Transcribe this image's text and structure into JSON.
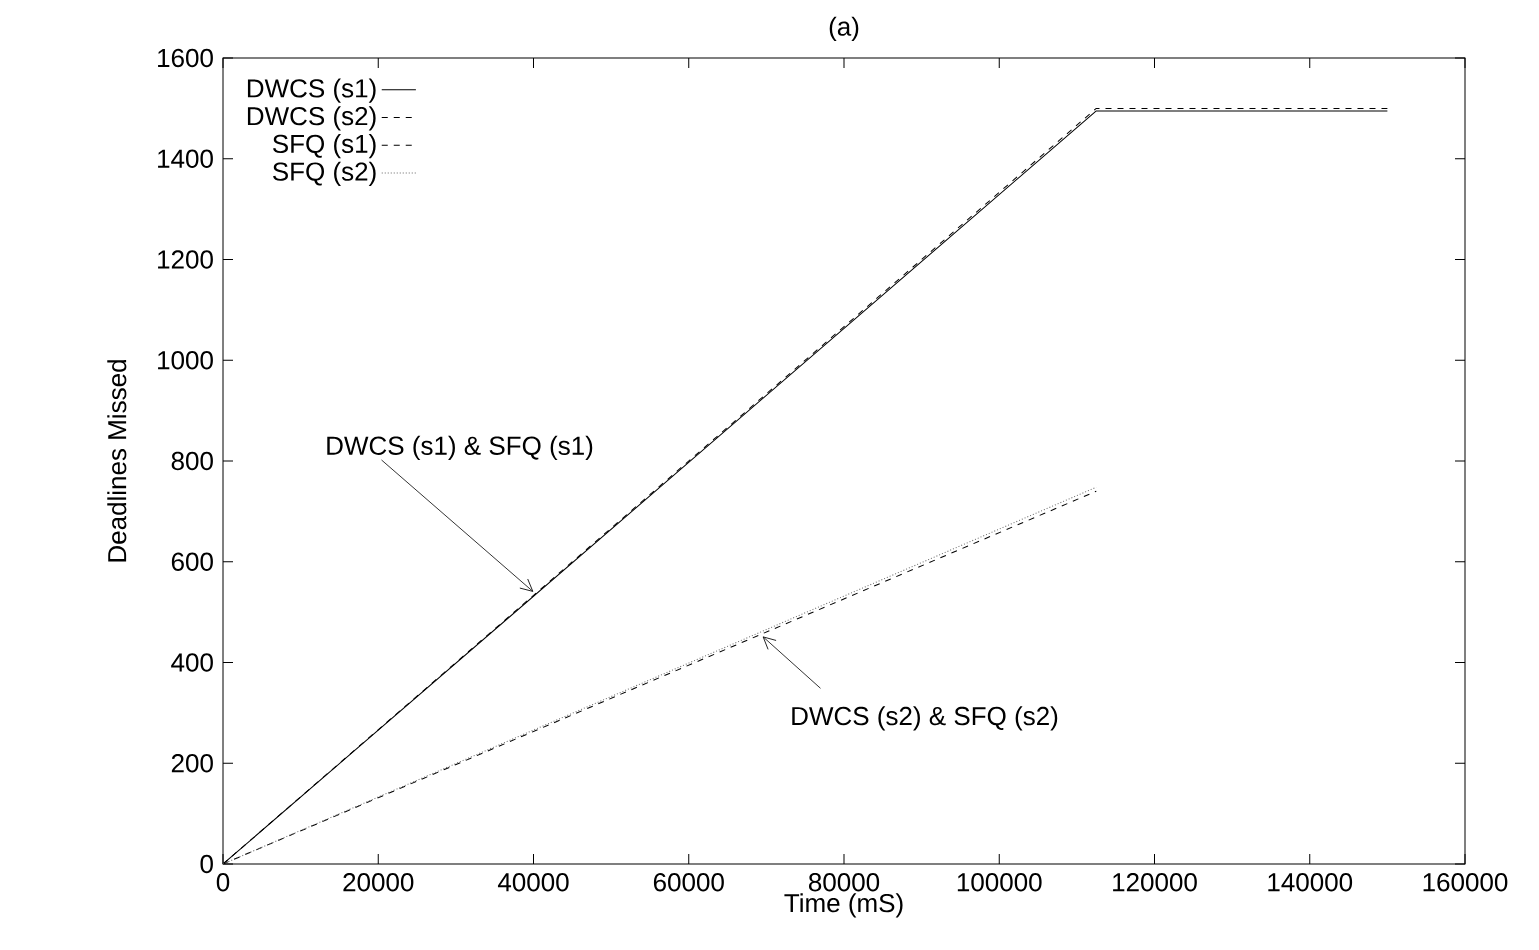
{
  "chart_data": {
    "type": "line",
    "title": "(a)",
    "xlabel": "Time (mS)",
    "ylabel": "Deadlines Missed",
    "series": [
      {
        "name": "DWCS (s1)",
        "color": "#000000",
        "line_style": "solid",
        "x": [
          0,
          112500,
          150000
        ],
        "values": [
          0,
          1495,
          1495
        ]
      },
      {
        "name": "DWCS (s2)",
        "color": "#000000",
        "line_style": "dashed",
        "x": [
          0,
          112500
        ],
        "values": [
          0,
          740
        ]
      },
      {
        "name": "SFQ (s1)",
        "color": "#000000",
        "line_style": "dashed",
        "x": [
          0,
          112500,
          150000
        ],
        "values": [
          0,
          1500,
          1500
        ]
      },
      {
        "name": "SFQ (s2)",
        "color": "#666666",
        "line_style": "dotted",
        "x": [
          0,
          112500
        ],
        "values": [
          0,
          748
        ]
      }
    ],
    "xlim": [
      0,
      160000
    ],
    "ylim": [
      0,
      1600
    ],
    "xticks": [
      0,
      20000,
      40000,
      60000,
      80000,
      100000,
      120000,
      140000,
      160000
    ],
    "yticks": [
      0,
      200,
      400,
      600,
      800,
      1000,
      1200,
      1400,
      1600
    ],
    "grid": false,
    "legend": "top left",
    "marker": "none",
    "annotations": [
      {
        "text": "DWCS (s1) & SFQ (s1)",
        "x": 40000,
        "y": 540
      },
      {
        "text": "DWCS (s2) & SFQ (s2)",
        "x": 69500,
        "y": 452
      }
    ]
  }
}
